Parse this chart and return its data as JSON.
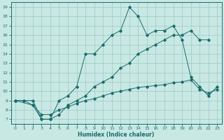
{
  "xlabel": "Humidex (Indice chaleur)",
  "bg_color": "#c8e8e4",
  "grid_color": "#9ec8c4",
  "line_color": "#1a6b6b",
  "xlim": [
    -0.5,
    23.5
  ],
  "ylim": [
    6.5,
    19.5
  ],
  "xticks": [
    0,
    1,
    2,
    3,
    4,
    5,
    6,
    7,
    8,
    9,
    10,
    11,
    12,
    13,
    14,
    15,
    16,
    17,
    18,
    19,
    20,
    21,
    22,
    23
  ],
  "yticks": [
    7,
    8,
    9,
    10,
    11,
    12,
    13,
    14,
    15,
    16,
    17,
    18,
    19
  ],
  "line1_x": [
    0,
    1,
    2,
    3,
    4,
    5,
    6,
    7,
    8,
    9,
    10,
    11,
    12,
    13,
    14,
    15,
    16,
    17,
    18,
    19,
    20,
    21,
    22,
    23
  ],
  "line1_y": [
    9.0,
    9.0,
    9.0,
    7.0,
    7.0,
    9.0,
    9.5,
    10.5,
    14.0,
    14.0,
    15.0,
    16.0,
    16.5,
    19.0,
    18.0,
    16.0,
    16.5,
    16.5,
    17.0,
    15.5,
    11.5,
    10.5,
    9.5,
    10.5
  ],
  "line2_x": [
    0,
    2,
    3,
    4,
    5,
    6,
    7,
    8,
    9,
    10,
    11,
    12,
    13,
    14,
    15,
    16,
    17,
    18,
    19,
    20,
    21,
    22
  ],
  "line2_y": [
    9.0,
    8.5,
    7.0,
    7.0,
    7.5,
    8.5,
    9.0,
    9.5,
    10.5,
    11.0,
    11.5,
    12.5,
    13.0,
    14.0,
    14.5,
    15.0,
    15.5,
    16.0,
    16.0,
    16.5,
    15.5,
    15.5
  ],
  "line3_x": [
    0,
    1,
    2,
    3,
    4,
    5,
    6,
    7,
    8,
    9,
    10,
    11,
    12,
    13,
    14,
    15,
    16,
    17,
    18,
    19,
    20,
    21,
    22,
    23
  ],
  "line3_y": [
    9.0,
    9.0,
    8.5,
    7.5,
    7.5,
    8.0,
    8.3,
    8.7,
    9.0,
    9.2,
    9.5,
    9.8,
    10.0,
    10.2,
    10.4,
    10.5,
    10.6,
    10.7,
    10.9,
    11.0,
    11.2,
    10.2,
    9.8,
    10.2
  ]
}
